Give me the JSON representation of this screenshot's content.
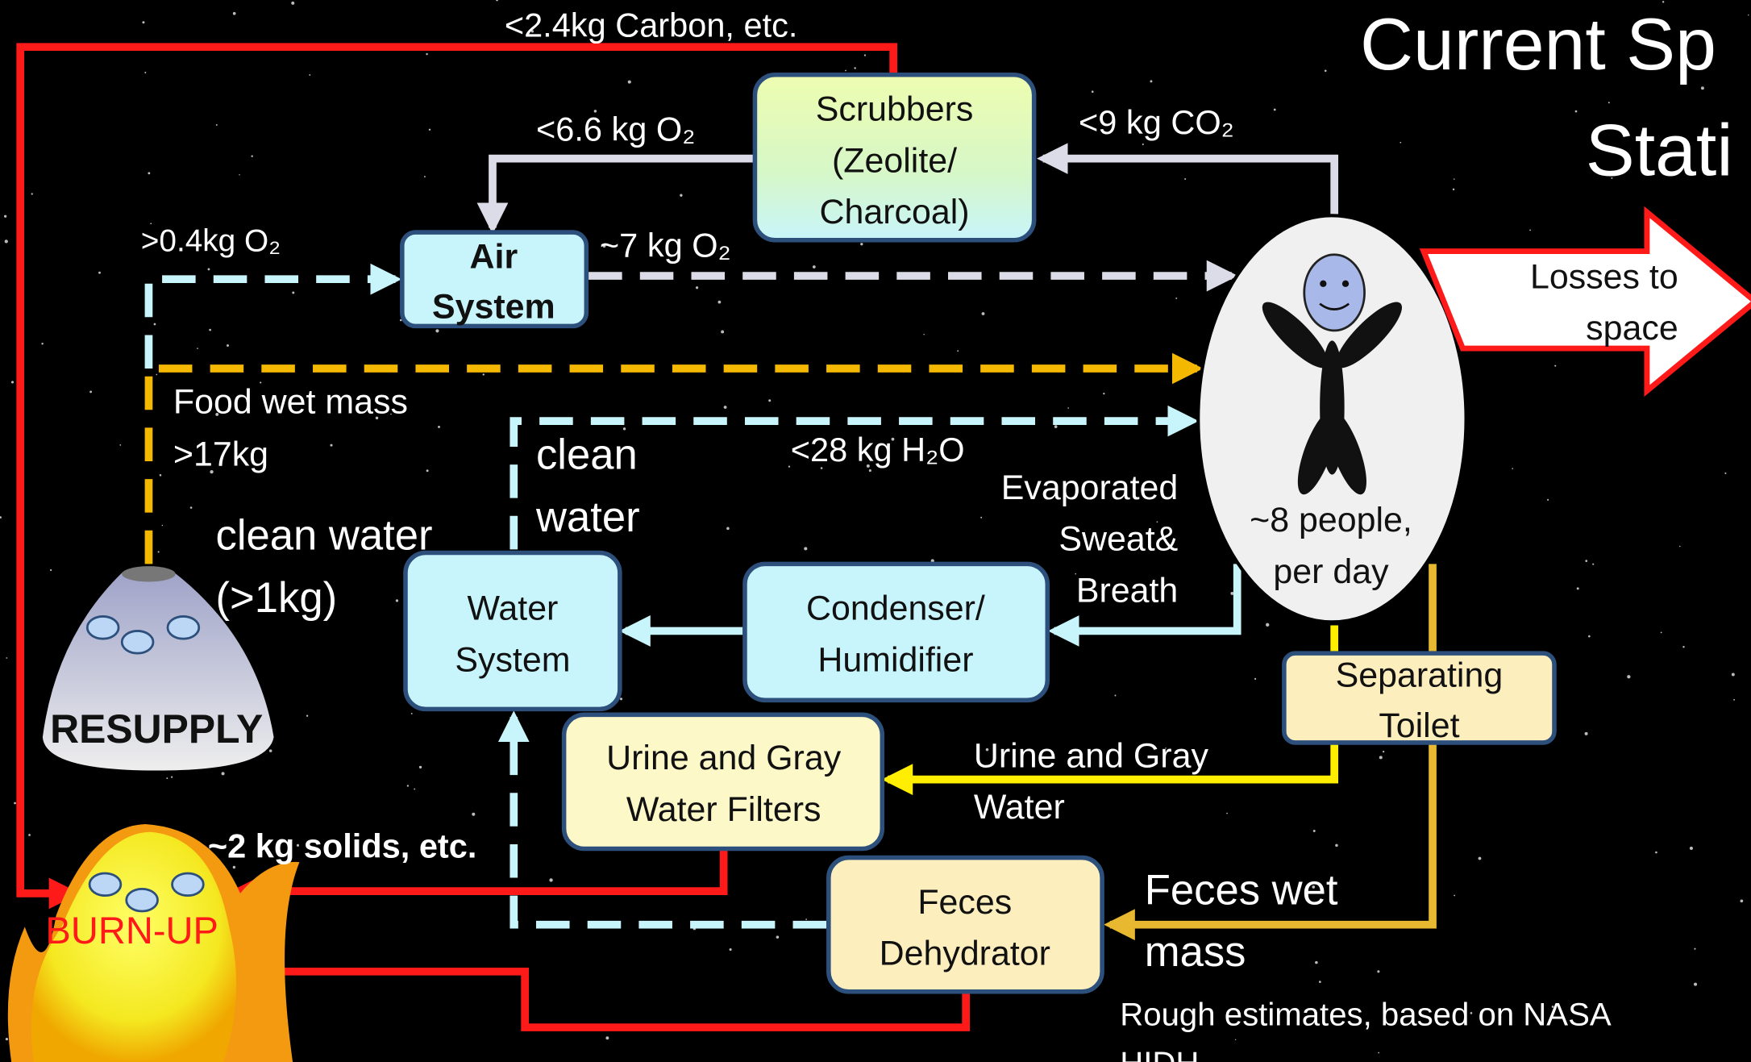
{
  "title": [
    "Current Sp",
    "Stati"
  ],
  "nodes": {
    "scrubbers": [
      "Scrubbers",
      "(Zeolite/",
      "Charcoal)"
    ],
    "air_system": [
      "Air",
      "System"
    ],
    "water_system": [
      "Water",
      "System"
    ],
    "condenser": [
      "Condenser/",
      "Humidifier"
    ],
    "filters": [
      "Urine and Gray",
      "Water Filters"
    ],
    "feces_dehydrator": [
      "Feces",
      "Dehydrator"
    ],
    "toilet": [
      "Separating",
      "Toilet"
    ],
    "people": [
      "~8 people,",
      "per day"
    ],
    "losses": [
      "Losses to",
      "space"
    ],
    "resupply": "RESUPPLY",
    "burnup": "BURN-UP"
  },
  "flows": {
    "carbon": "<2.4kg Carbon, etc.",
    "scrubber_o2": "<6.6 kg O₂",
    "co2": "<9 kg CO₂",
    "resupply_o2": ">0.4kg O₂",
    "air_o2": "~7 kg O₂",
    "food": [
      "Food wet mass",
      ">17kg"
    ],
    "resupply_water": [
      "clean water",
      "(>1kg)"
    ],
    "clean_water": [
      "clean",
      "water"
    ],
    "h2o": "<28 kg H₂O",
    "evaporated": [
      "Evaporated",
      "Sweat&",
      "Breath"
    ],
    "urine": [
      "Urine and Gray",
      "Water"
    ],
    "solids": "~2 kg solids, etc.",
    "feces": [
      "Feces wet",
      "mass"
    ]
  },
  "note": [
    "Rough estimates, based on NASA",
    "HIDH"
  ]
}
